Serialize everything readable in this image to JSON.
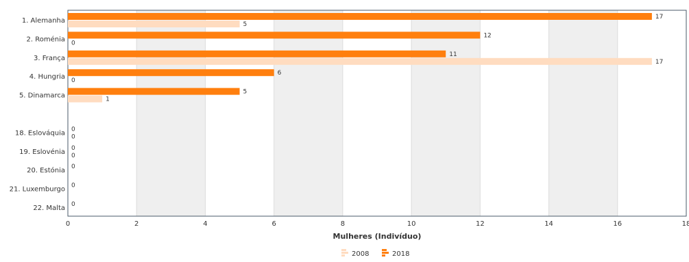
{
  "chart_data": {
    "type": "bar",
    "orientation": "horizontal",
    "categories": [
      "1. Alemanha",
      "2. Roménia",
      "3. França",
      "4. Hungria",
      "5. Dinamarca",
      "",
      "18. Eslováquia",
      "19. Eslovénia",
      "20. Estónia",
      "21. Luxemburgo",
      "22. Malta"
    ],
    "series": [
      {
        "name": "2018",
        "color": "#ff7f0e",
        "values": [
          17,
          12,
          11,
          6,
          5,
          null,
          0,
          0,
          0,
          0,
          0
        ]
      },
      {
        "name": "2008",
        "color": "#ffdcc0",
        "values": [
          5,
          0,
          17,
          0,
          1,
          null,
          0,
          0,
          null,
          null,
          null
        ]
      }
    ],
    "value_labels": {
      "2018": [
        "17",
        "12",
        "11",
        "6",
        "5",
        "",
        "0",
        "0",
        "0",
        "0",
        "0"
      ],
      "2008": [
        "5",
        "0",
        "17",
        "0",
        "1",
        "",
        "0",
        "0",
        "",
        "",
        ""
      ]
    },
    "xlabel": "Mulheres (Indivíduo)",
    "xlim": [
      0,
      18
    ],
    "xticks": [
      0,
      2,
      4,
      6,
      8,
      10,
      12,
      14,
      16,
      18
    ],
    "xtick_labels": [
      "0",
      "2",
      "4",
      "6",
      "8",
      "10",
      "12",
      "14",
      "16",
      "18"
    ],
    "grid": "alternating vertical bands",
    "legend": {
      "placement": "bottom-center",
      "entries": [
        "2008",
        "2018"
      ]
    }
  }
}
